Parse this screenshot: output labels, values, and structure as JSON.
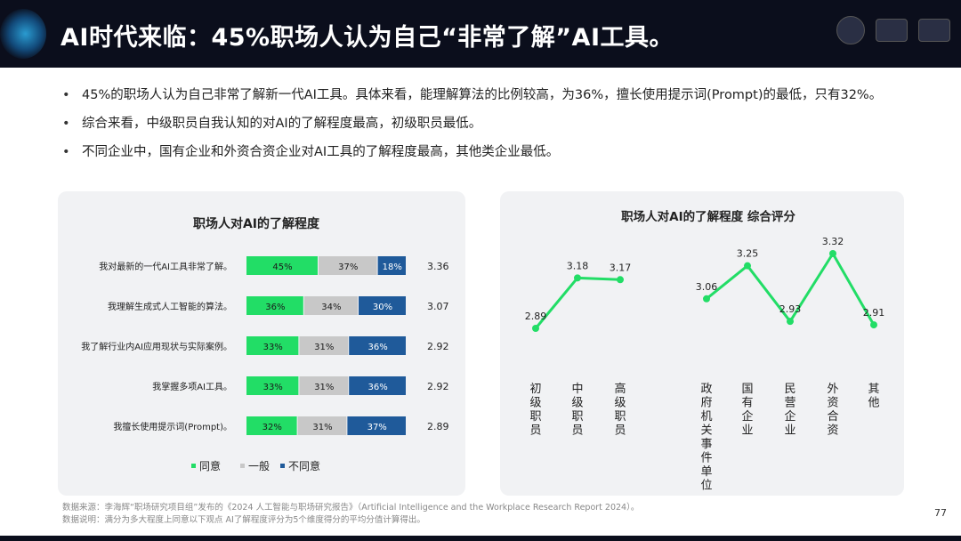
{
  "header": {
    "title": "AI时代来临：45%职场人认为自己“非常了解”AI工具。"
  },
  "bullets": [
    "45%的职场人认为自己非常了解新一代AI工具。具体来看，能理解算法的比例较高，为36%，擅长使用提示词(Prompt)的最低，只有32%。",
    "综合来看，中级职员自我认知的对AI的了解程度最高，初级职员最低。",
    "不同企业中，国有企业和外资合资企业对AI工具的了解程度最高，其他类企业最低。"
  ],
  "colors": {
    "agree": "#22dd66",
    "neutral": "#c8c8c8",
    "disagree": "#1f5a9a",
    "line": "#22dd66"
  },
  "chart_data": [
    {
      "type": "bar",
      "stacked": true,
      "orientation": "horizontal",
      "title": "职场人对AI的了解程度",
      "categories": [
        "我对最新的一代AI工具非常了解。",
        "我理解生成式人工智能的算法。",
        "我了解行业内AI应用现状与实际案例。",
        "我掌握多项AI工具。",
        "我擅长使用提示词(Prompt)。"
      ],
      "series": [
        {
          "name": "同意",
          "values": [
            45,
            36,
            33,
            33,
            32
          ]
        },
        {
          "name": "一般",
          "values": [
            37,
            34,
            31,
            31,
            31
          ]
        },
        {
          "name": "不同意",
          "values": [
            18,
            30,
            36,
            36,
            37
          ]
        }
      ],
      "scores": [
        "3.36",
        "3.07",
        "2.92",
        "2.92",
        "2.89"
      ],
      "legend": "bottom"
    },
    {
      "type": "line",
      "title": "职场人对AI的了解程度 综合评分",
      "groups": [
        {
          "categories": [
            "初级职员",
            "中级职员",
            "高级职员"
          ],
          "values": [
            2.89,
            3.18,
            3.17
          ]
        },
        {
          "categories": [
            "政府机关事件单位",
            "国有企业",
            "民营企业",
            "外资合资",
            "其他"
          ],
          "values": [
            3.06,
            3.25,
            2.93,
            3.32,
            2.91
          ]
        }
      ]
    }
  ],
  "footer": {
    "line1": "数据来源：李海辉“职场研究项目组”发布的《2024 人工智能与职场研究报告》（Artificial Intelligence and the Workplace Research Report 2024）。",
    "line2": "数据说明：满分为多大程度上同意以下观点 AI了解程度评分为5个维度得分的平均分值计算得出。",
    "page": "77"
  }
}
